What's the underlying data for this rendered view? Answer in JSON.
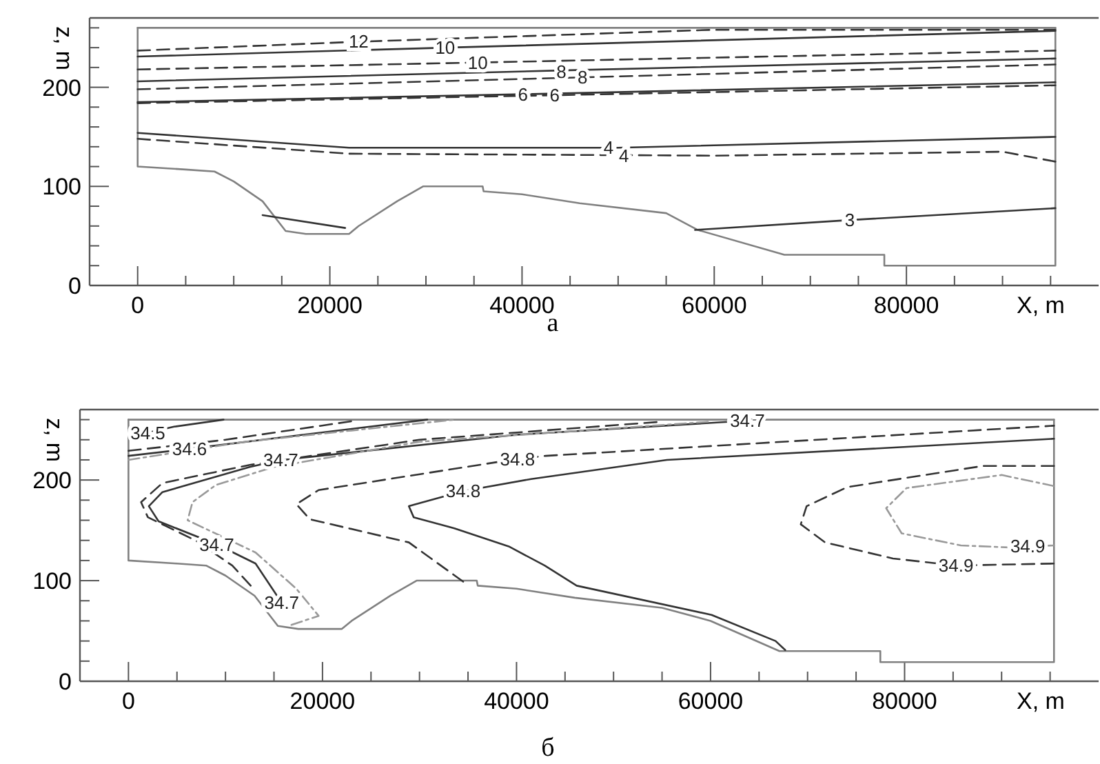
{
  "chart_data": [
    {
      "type": "line",
      "title": "а",
      "xlabel": "X, m",
      "ylabel": "z, m",
      "xlim": [
        -5000,
        100000
      ],
      "ylim": [
        0,
        270
      ],
      "xticks": [
        0,
        {
          "value": 5000,
          "label": null
        },
        {
          "value": 10000,
          "label": null
        },
        {
          "value": 15000,
          "label": null
        },
        20000,
        {
          "value": 25000,
          "label": null
        },
        {
          "value": 30000,
          "label": null
        },
        {
          "value": 35000,
          "label": null
        },
        40000,
        {
          "value": 45000,
          "label": null
        },
        {
          "value": 50000,
          "label": null
        },
        {
          "value": 55000,
          "label": null
        },
        60000,
        {
          "value": 65000,
          "label": null
        },
        {
          "value": 70000,
          "label": null
        },
        {
          "value": 75000,
          "label": null
        },
        80000,
        {
          "value": 85000,
          "label": null
        },
        {
          "value": 90000,
          "label": null
        },
        {
          "value": 95000,
          "label": null
        }
      ],
      "yticks": [
        0,
        {
          "value": 20,
          "label": null
        },
        {
          "value": 40,
          "label": null
        },
        {
          "value": 60,
          "label": null
        },
        {
          "value": 80,
          "label": null
        },
        100,
        {
          "value": 120,
          "label": null
        },
        {
          "value": 140,
          "label": null
        },
        {
          "value": 160,
          "label": null
        },
        {
          "value": 180,
          "label": null
        },
        200,
        {
          "value": 220,
          "label": null
        },
        {
          "value": 240,
          "label": null
        },
        {
          "value": 260,
          "label": null
        }
      ],
      "grid": false,
      "series": [
        {
          "color": "#808080",
          "line_style": "solid",
          "x": [
            0,
            0,
            5000,
            8000,
            10000,
            13000,
            15400,
            17500,
            22000,
            23000,
            27000,
            29700,
            35900,
            36000,
            40000,
            46000,
            55000,
            58300,
            67300,
            77700,
            77700,
            95500,
            95500
          ],
          "values": [
            260,
            120,
            117,
            115,
            105,
            85,
            55,
            52,
            52,
            60,
            85,
            100,
            100,
            95,
            92,
            83,
            73,
            56,
            31,
            31,
            20,
            20,
            260
          ]
        },
        {
          "color": "#808080",
          "line_style": "solid",
          "x": [
            0,
            95500
          ],
          "values": [
            260,
            260
          ]
        },
        {
          "color": "#333333",
          "line_style": "dashed",
          "x": [
            0,
            23000,
            59700,
            95500
          ],
          "values": [
            237,
            246,
            258,
            258
          ]
        },
        {
          "color": "#333333",
          "line_style": "solid",
          "x": [
            0,
            32000,
            95500
          ],
          "values": [
            231,
            240,
            257
          ]
        },
        {
          "color": "#333333",
          "line_style": "dashed",
          "x": [
            0,
            35400,
            95500
          ],
          "values": [
            218,
            225,
            237
          ]
        },
        {
          "color": "#333333",
          "line_style": "solid",
          "x": [
            0,
            44100,
            95500
          ],
          "values": [
            206,
            217,
            229
          ]
        },
        {
          "color": "#333333",
          "line_style": "dashed",
          "x": [
            0,
            46300,
            95500
          ],
          "values": [
            198,
            210,
            223
          ]
        },
        {
          "color": "#333333",
          "line_style": "solid",
          "x": [
            0,
            40100,
            95500
          ],
          "values": [
            185,
            193,
            205
          ]
        },
        {
          "color": "#333333",
          "line_style": "dashed",
          "x": [
            0,
            43400,
            95500
          ],
          "values": [
            184,
            192,
            202
          ]
        },
        {
          "color": "#333333",
          "line_style": "solid",
          "x": [
            0,
            22000,
            50000,
            95500
          ],
          "values": [
            154,
            139,
            139,
            150
          ]
        },
        {
          "color": "#333333",
          "line_style": "dashed",
          "x": [
            0,
            22000,
            60000,
            90000,
            95500
          ],
          "values": [
            148,
            133,
            131,
            135,
            125
          ]
        },
        {
          "color": "#333333",
          "line_style": "solid",
          "x": [
            13000,
            21600,
            40000,
            58000,
            74100,
            95500
          ],
          "values": [
            71,
            58,
            null,
            56,
            66,
            78
          ]
        }
      ],
      "annotations": [
        {
          "text": "12",
          "x": 23000,
          "y": 246
        },
        {
          "text": "10",
          "x": 32000,
          "y": 240
        },
        {
          "text": "10",
          "x": 35400,
          "y": 225
        },
        {
          "text": "8",
          "x": 44100,
          "y": 216
        },
        {
          "text": "8",
          "x": 46300,
          "y": 210
        },
        {
          "text": "6",
          "x": 40100,
          "y": 193
        },
        {
          "text": "6",
          "x": 43400,
          "y": 192
        },
        {
          "text": "4",
          "x": 49000,
          "y": 139
        },
        {
          "text": "4",
          "x": 50600,
          "y": 131
        },
        {
          "text": "3",
          "x": 74100,
          "y": 66
        }
      ]
    },
    {
      "type": "line",
      "title": "б",
      "xlabel": "X, m",
      "ylabel": "z, m",
      "xlim": [
        -5000,
        100000
      ],
      "ylim": [
        0,
        270
      ],
      "xticks": [
        0,
        {
          "value": 5000,
          "label": null
        },
        {
          "value": 10000,
          "label": null
        },
        {
          "value": 15000,
          "label": null
        },
        20000,
        {
          "value": 25000,
          "label": null
        },
        {
          "value": 30000,
          "label": null
        },
        {
          "value": 35000,
          "label": null
        },
        40000,
        {
          "value": 45000,
          "label": null
        },
        {
          "value": 50000,
          "label": null
        },
        {
          "value": 55000,
          "label": null
        },
        60000,
        {
          "value": 65000,
          "label": null
        },
        {
          "value": 70000,
          "label": null
        },
        {
          "value": 75000,
          "label": null
        },
        80000,
        {
          "value": 85000,
          "label": null
        },
        {
          "value": 90000,
          "label": null
        },
        {
          "value": 95000,
          "label": null
        }
      ],
      "yticks": [
        0,
        {
          "value": 20,
          "label": null
        },
        {
          "value": 40,
          "label": null
        },
        {
          "value": 60,
          "label": null
        },
        {
          "value": 80,
          "label": null
        },
        100,
        {
          "value": 120,
          "label": null
        },
        {
          "value": 140,
          "label": null
        },
        {
          "value": 160,
          "label": null
        },
        {
          "value": 180,
          "label": null
        },
        200,
        {
          "value": 220,
          "label": null
        },
        {
          "value": 240,
          "label": null
        },
        {
          "value": 260,
          "label": null
        }
      ],
      "grid": false,
      "series": [
        {
          "color": "#808080",
          "line_style": "solid",
          "x": [
            0,
            0,
            5000,
            8000,
            10000,
            13000,
            15400,
            17500,
            22000,
            23000,
            27000,
            29700,
            35900,
            36000,
            40000,
            46000,
            55000,
            60000,
            67100,
            77500,
            77500,
            95400,
            95400
          ],
          "values": [
            260,
            120,
            117,
            115,
            105,
            85,
            55,
            52,
            52,
            60,
            85,
            100,
            100,
            95,
            92,
            83,
            73,
            60,
            30,
            30,
            19,
            19,
            260
          ]
        },
        {
          "color": "#808080",
          "line_style": "solid",
          "x": [
            0,
            95400
          ],
          "values": [
            260,
            260
          ]
        },
        {
          "color": "#333333",
          "line_style": "solid",
          "x": [
            2000,
            4700,
            9800
          ],
          "values": [
            247,
            253,
            260
          ]
        },
        {
          "color": "#333333",
          "line_style": "solid",
          "x": [
            0,
            6300,
            18000,
            30800
          ],
          "values": [
            224,
            231,
            245,
            260
          ]
        },
        {
          "color": "#333333",
          "line_style": "dashed",
          "x": [
            0,
            10000,
            23400
          ],
          "values": [
            229,
            240,
            259
          ]
        },
        {
          "color": "#999999",
          "line_style": "dashdot",
          "x": [
            0,
            12000,
            33600
          ],
          "values": [
            220,
            238,
            260
          ]
        },
        {
          "color": "#333333",
          "line_style": "solid",
          "x": [
            15800,
            15100,
            13100,
            9100,
            3100,
            2100,
            3500,
            12500,
            15700,
            18700,
            40000,
            63800
          ],
          "values": [
            78,
            88,
            117,
            136,
            159,
            174,
            188,
            213,
            220,
            223,
            245,
            259
          ]
        },
        {
          "color": "#333333",
          "line_style": "dashed",
          "x": [
            12600,
            10700,
            6900,
            2000,
            1300,
            3500,
            12500,
            30000,
            55000
          ],
          "values": [
            95,
            115,
            140,
            163,
            178,
            197,
            215,
            240,
            258
          ]
        },
        {
          "color": "#999999",
          "line_style": "dashdot",
          "x": [
            16800,
            19600,
            17300,
            13100,
            6100,
            6600,
            9000,
            15000,
            30000,
            60000
          ],
          "values": [
            56,
            65,
            92,
            128,
            160,
            178,
            195,
            213,
            238,
            258
          ]
        },
        {
          "color": "#333333",
          "line_style": "solid",
          "x": [
            67700,
            66700,
            60100,
            46200,
            42900,
            39200,
            33600,
            29400,
            28900,
            34500,
            41500,
            55500,
            95400
          ],
          "values": [
            31,
            40,
            66,
            95,
            115,
            134,
            152,
            163,
            174,
            189,
            201,
            220,
            241
          ]
        },
        {
          "color": "#333333",
          "line_style": "dashed",
          "x": [
            34500,
            28900,
            18700,
            17300,
            19600,
            40100,
            43000,
            95400
          ],
          "values": [
            99,
            138,
            161,
            176,
            190,
            221,
            224,
            254
          ]
        },
        {
          "color": "#333333",
          "line_style": "dashed",
          "x": [
            95400,
            88100,
            74100,
            69900,
            69300,
            71800,
            78800,
            85300,
            95400
          ],
          "values": [
            214,
            214,
            193,
            174,
            156,
            138,
            122,
            115,
            117
          ]
        },
        {
          "color": "#999999",
          "line_style": "dashdot",
          "x": [
            95400,
            90000,
            80200,
            78100,
            79700,
            85800,
            90800,
            95400
          ],
          "values": [
            194,
            205,
            192,
            172,
            147,
            135,
            133,
            135
          ]
        }
      ],
      "annotations": [
        {
          "text": "34.5",
          "x": 2000,
          "y": 247
        },
        {
          "text": "34.6",
          "x": 6300,
          "y": 231
        },
        {
          "text": "34.7",
          "x": 15700,
          "y": 220
        },
        {
          "text": "34.7",
          "x": 9100,
          "y": 136
        },
        {
          "text": "34.7",
          "x": 15800,
          "y": 78
        },
        {
          "text": "34.7",
          "x": 63800,
          "y": 259
        },
        {
          "text": "34.8",
          "x": 34500,
          "y": 189
        },
        {
          "text": "34.8",
          "x": 40100,
          "y": 221
        },
        {
          "text": "34.9",
          "x": 85300,
          "y": 115
        },
        {
          "text": "34.9",
          "x": 92700,
          "y": 134
        }
      ]
    }
  ]
}
